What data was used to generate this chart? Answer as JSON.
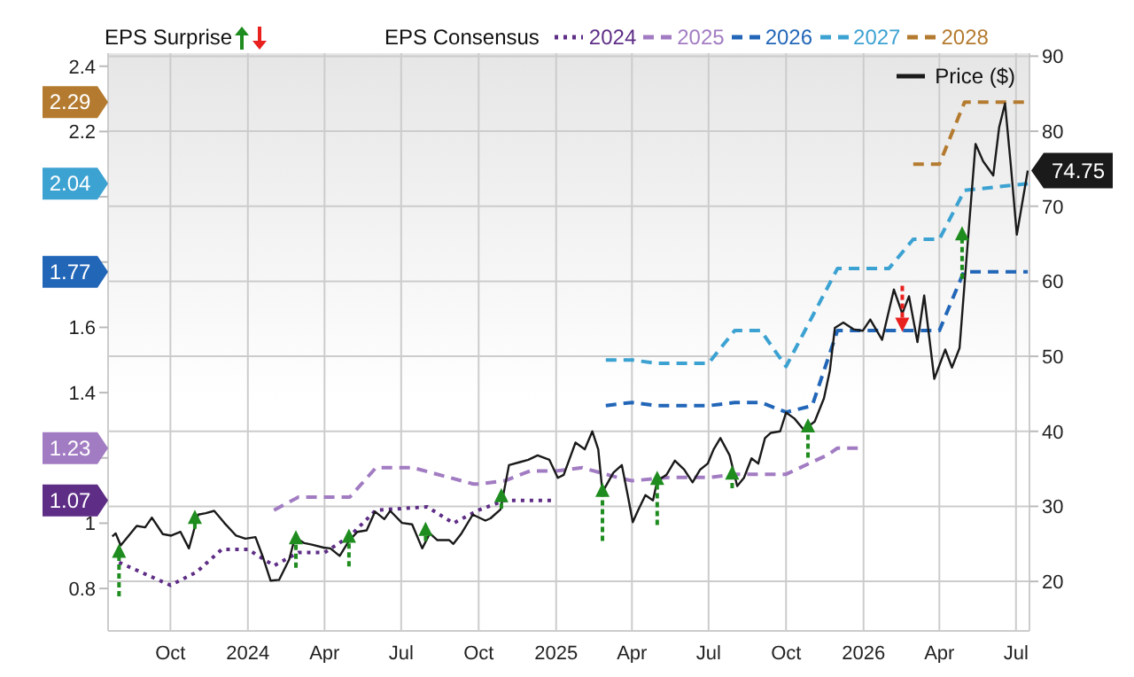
{
  "chart_data": {
    "type": "line",
    "legend_title": "EPS Consensus",
    "annotations": [
      "EPS Surprise"
    ],
    "legend": "top",
    "grid": true,
    "xlim": [
      "2023-07-19",
      "2026-07-17"
    ],
    "xticks": [
      {
        "value": "2023-10-01",
        "label": "Oct"
      },
      {
        "value": "2024-01-01",
        "label": "2024"
      },
      {
        "value": "2024-04-01",
        "label": "Apr"
      },
      {
        "value": "2024-07-01",
        "label": "Jul"
      },
      {
        "value": "2024-10-01",
        "label": "Oct"
      },
      {
        "value": "2025-01-01",
        "label": "2025"
      },
      {
        "value": "2025-04-01",
        "label": "Apr"
      },
      {
        "value": "2025-07-01",
        "label": "Jul"
      },
      {
        "value": "2025-10-01",
        "label": "Oct"
      },
      {
        "value": "2026-01-01",
        "label": "2026"
      },
      {
        "value": "2026-04-01",
        "label": "Apr"
      },
      {
        "value": "2026-07-01",
        "label": "Jul"
      }
    ],
    "ylim": [
      0.67,
      2.44
    ],
    "yticks": [
      0.8,
      1,
      {
        "value": 1.07,
        "label": "1.07"
      },
      {
        "value": 1.2,
        "label": null
      },
      {
        "value": 1.23,
        "label": "1.23"
      },
      1.4,
      1.6,
      {
        "value": 1.77,
        "label": "1.77"
      },
      {
        "value": 1.8,
        "label": null
      },
      {
        "value": 2,
        "label": null
      },
      {
        "value": 2.04,
        "label": "2.04"
      },
      2.2,
      {
        "value": 2.29,
        "label": "2.29"
      },
      2.4
    ],
    "y2lim": [
      13.4,
      90.4
    ],
    "y2ticks": [
      20,
      30,
      40,
      50,
      60,
      70,
      80,
      90
    ],
    "series": [
      {
        "type": "scatter",
        "axis": "y2",
        "color": "#1e8c1e",
        "x": [
          "2023-08-01",
          "2023-10-30",
          "2024-02-27",
          "2024-04-30",
          "2024-07-30",
          "2024-10-28",
          "2025-02-25",
          "2025-05-01",
          "2025-07-29",
          "2025-10-27",
          "2026-02-16",
          "2026-04-28"
        ],
        "values": [
          24.1,
          28.6,
          25.9,
          26.1,
          27.0,
          31.5,
          32.2,
          33.8,
          34.5,
          40.8,
          54.2,
          66.4
        ],
        "errors": [
          [
            18.0,
            24.1
          ],
          [
            27.0,
            28.6
          ],
          [
            21.8,
            25.9
          ],
          [
            22.0,
            26.1
          ],
          [
            25.4,
            27.0
          ],
          [
            29.7,
            31.5
          ],
          [
            25.4,
            32.2
          ],
          [
            27.5,
            33.8
          ],
          [
            32.4,
            34.5
          ],
          [
            36.5,
            40.8
          ],
          [
            54.2,
            59.4
          ],
          [
            60.3,
            66.4
          ]
        ],
        "colors": [
          "#1e8c1e",
          "#1e8c1e",
          "#1e8c1e",
          "#1e8c1e",
          "#1e8c1e",
          "#1e8c1e",
          "#1e8c1e",
          "#1e8c1e",
          "#1e8c1e",
          "#1e8c1e",
          "#e8201e",
          "#1e8c1e"
        ]
      },
      {
        "name": "2024",
        "color": "#5e2d86",
        "line_style": "dotted",
        "x": [
          "2023-08-01",
          "2023-10-01",
          "2023-11-01",
          "2023-12-01",
          "2024-01-01",
          "2024-02-01",
          "2024-03-01",
          "2024-04-01",
          "2024-05-01",
          "2024-06-01",
          "2024-08-01",
          "2024-09-01",
          "2024-10-01",
          "2024-11-01",
          "2025-01-01"
        ],
        "values": [
          0.88,
          0.81,
          0.85,
          0.92,
          0.92,
          0.87,
          0.91,
          0.91,
          0.96,
          1.04,
          1.05,
          1.0,
          1.04,
          1.07,
          1.07
        ]
      },
      {
        "name": "2025",
        "color": "#a27cc2",
        "line_style": "dashed",
        "x": [
          "2024-02-01",
          "2024-03-01",
          "2024-05-01",
          "2024-06-01",
          "2024-07-15",
          "2024-09-25",
          "2024-10-01",
          "2024-11-01",
          "2024-12-01",
          "2025-01-01",
          "2025-02-01",
          "2025-03-15",
          "2025-04-01",
          "2025-05-15",
          "2025-07-01",
          "2025-08-01",
          "2025-10-01",
          "2025-11-20",
          "2025-12-01",
          "2026-01-01"
        ],
        "values": [
          1.04,
          1.08,
          1.08,
          1.17,
          1.17,
          1.12,
          1.12,
          1.13,
          1.16,
          1.16,
          1.17,
          1.14,
          1.13,
          1.14,
          1.14,
          1.15,
          1.15,
          1.21,
          1.23,
          1.23
        ]
      },
      {
        "name": "2026",
        "color": "#2266b8",
        "line_style": "dashed",
        "x": [
          "2025-03-01",
          "2025-04-01",
          "2025-05-01",
          "2025-07-01",
          "2025-08-01",
          "2025-09-01",
          "2025-10-01",
          "2025-11-01",
          "2025-12-01",
          "2025-12-15",
          "2026-04-01",
          "2026-04-30",
          "2026-07-15"
        ],
        "values": [
          1.36,
          1.37,
          1.36,
          1.36,
          1.37,
          1.37,
          1.34,
          1.36,
          1.59,
          1.59,
          1.59,
          1.77,
          1.77
        ]
      },
      {
        "name": "2027",
        "color": "#3ca2d2",
        "line_style": "dashed",
        "x": [
          "2025-03-01",
          "2025-04-01",
          "2025-05-01",
          "2025-07-01",
          "2025-08-01",
          "2025-09-01",
          "2025-10-01",
          "2025-12-01",
          "2026-01-31",
          "2026-03-01",
          "2026-04-01",
          "2026-05-01",
          "2026-07-15"
        ],
        "values": [
          1.5,
          1.5,
          1.49,
          1.49,
          1.59,
          1.59,
          1.48,
          1.78,
          1.78,
          1.87,
          1.87,
          2.02,
          2.04
        ]
      },
      {
        "name": "2028",
        "color": "#b47b30",
        "line_style": "dashed",
        "x": [
          "2026-03-01",
          "2026-04-01",
          "2026-05-01",
          "2026-07-15"
        ],
        "values": [
          2.1,
          2.1,
          2.29,
          2.29
        ]
      },
      {
        "name": "Price ($)",
        "color": "#1a1a1a",
        "line_style": "solid",
        "axis": "y2",
        "x": [
          "2023-07-24",
          "2023-07-28",
          "2023-08-03",
          "2023-08-22",
          "2023-09-01",
          "2023-09-09",
          "2023-09-22",
          "2023-10-02",
          "2023-10-13",
          "2023-10-23",
          "2023-11-03",
          "2023-11-12",
          "2023-11-22",
          "2023-12-04",
          "2023-12-18",
          "2023-12-29",
          "2024-01-10",
          "2024-01-19",
          "2024-01-28",
          "2024-02-07",
          "2024-02-19",
          "2024-02-26",
          "2024-03-08",
          "2024-03-17",
          "2024-03-31",
          "2024-04-08",
          "2024-04-19",
          "2024-04-30",
          "2024-05-10",
          "2024-05-21",
          "2024-05-31",
          "2024-06-11",
          "2024-06-18",
          "2024-07-02",
          "2024-07-14",
          "2024-07-26",
          "2024-08-04",
          "2024-08-13",
          "2024-08-27",
          "2024-09-01",
          "2024-09-10",
          "2024-09-24",
          "2024-10-09",
          "2024-10-15",
          "2024-10-27",
          "2024-11-06",
          "2024-11-19",
          "2024-11-29",
          "2024-12-10",
          "2024-12-24",
          "2025-01-03",
          "2025-01-10",
          "2025-01-24",
          "2025-02-04",
          "2025-02-13",
          "2025-02-20",
          "2025-02-25",
          "2025-03-10",
          "2025-03-20",
          "2025-03-27",
          "2025-04-02",
          "2025-04-08",
          "2025-04-17",
          "2025-04-26",
          "2025-05-01",
          "2025-05-12",
          "2025-05-22",
          "2025-06-02",
          "2025-06-12",
          "2025-06-21",
          "2025-06-30",
          "2025-07-07",
          "2025-07-15",
          "2025-07-26",
          "2025-08-04",
          "2025-08-12",
          "2025-08-21",
          "2025-08-29",
          "2025-09-06",
          "2025-09-13",
          "2025-09-24",
          "2025-10-01",
          "2025-10-11",
          "2025-10-22",
          "2025-11-04",
          "2025-11-15",
          "2025-11-22",
          "2025-11-28",
          "2025-12-08",
          "2025-12-20",
          "2025-12-31",
          "2026-01-09",
          "2026-01-23",
          "2026-02-06",
          "2026-02-16",
          "2026-02-24",
          "2026-03-06",
          "2026-03-14",
          "2026-03-26",
          "2026-04-08",
          "2026-04-16",
          "2026-04-25",
          "2026-05-06",
          "2026-05-14",
          "2026-05-23",
          "2026-06-04",
          "2026-06-11",
          "2026-06-18",
          "2026-06-25",
          "2026-07-02",
          "2026-07-15"
        ],
        "values": [
          26.0,
          26.4,
          24.8,
          27.4,
          27.2,
          28.5,
          26.3,
          26.1,
          26.6,
          24.4,
          28.9,
          29.1,
          29.4,
          27.8,
          26.1,
          25.7,
          25.9,
          23.2,
          20.1,
          20.2,
          22.9,
          25.9,
          25.1,
          24.9,
          24.5,
          24.4,
          23.4,
          25.4,
          26.6,
          26.8,
          29.3,
          28.3,
          29.4,
          27.8,
          27.6,
          24.4,
          26.4,
          25.5,
          25.5,
          25.0,
          26.3,
          28.9,
          28.1,
          28.4,
          29.6,
          35.5,
          35.9,
          36.2,
          36.8,
          36.2,
          33.8,
          34.2,
          38.5,
          37.6,
          40.0,
          37.6,
          31.9,
          34.5,
          35.5,
          31.5,
          27.9,
          29.4,
          31.5,
          30.8,
          33.4,
          34.2,
          36.1,
          34.9,
          33.2,
          34.9,
          35.7,
          37.6,
          39.1,
          36.8,
          32.7,
          33.8,
          36.4,
          35.7,
          39.1,
          39.8,
          40.0,
          42.5,
          41.7,
          40.2,
          41.3,
          44.4,
          48.1,
          53.8,
          54.5,
          53.6,
          53.4,
          54.9,
          52.2,
          58.9,
          55.7,
          58.0,
          51.9,
          58.1,
          47.0,
          50.9,
          48.5,
          51.1,
          67.0,
          78.3,
          76.0,
          74.1,
          80.5,
          83.7,
          75.3,
          66.2,
          74.75
        ],
        "value_labels": [
          null,
          null,
          null,
          null,
          null,
          null,
          null,
          null,
          null,
          null,
          null,
          null,
          null,
          null,
          null,
          null,
          null,
          null,
          null,
          null,
          null,
          null,
          null,
          null,
          null,
          null,
          null,
          null,
          null,
          null,
          null,
          null,
          null,
          null,
          null,
          null,
          null,
          null,
          null,
          null,
          null,
          null,
          null,
          null,
          null,
          null,
          null,
          null,
          null,
          null,
          null,
          null,
          null,
          null,
          null,
          null,
          null,
          null,
          null,
          null,
          null,
          null,
          null,
          null,
          null,
          null,
          null,
          null,
          null,
          null,
          null,
          null,
          null,
          null,
          null,
          null,
          null,
          null,
          null,
          null,
          null,
          null,
          null,
          null,
          null,
          null,
          null,
          null,
          null,
          null,
          null,
          null,
          null,
          null,
          null,
          null,
          null,
          null,
          null,
          null,
          null,
          null,
          null,
          null,
          null,
          null,
          null,
          null,
          null,
          null,
          "74.75"
        ]
      }
    ]
  }
}
